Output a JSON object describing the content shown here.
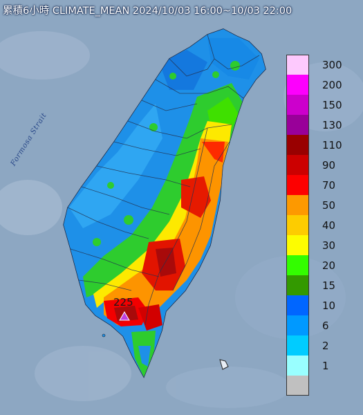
{
  "title": "累積6小時 CLIMATE_MEAN 2024/10/03 16:00~10/03 22:00",
  "strait_label": "Formosa Strait",
  "max_marker": {
    "value": "225",
    "color": "#c040e0"
  },
  "legend": [
    {
      "label": "300",
      "color": "#fdc9fd"
    },
    {
      "label": "200",
      "color": "#fd00fd"
    },
    {
      "label": "150",
      "color": "#cc00cc"
    },
    {
      "label": "130",
      "color": "#990099"
    },
    {
      "label": "110",
      "color": "#990000"
    },
    {
      "label": "90",
      "color": "#cc0000"
    },
    {
      "label": "70",
      "color": "#fd0000"
    },
    {
      "label": "50",
      "color": "#fd9900"
    },
    {
      "label": "40",
      "color": "#fdcc00"
    },
    {
      "label": "30",
      "color": "#fdfd00"
    },
    {
      "label": "20",
      "color": "#33fd00"
    },
    {
      "label": "15",
      "color": "#339900"
    },
    {
      "label": "10",
      "color": "#0066ff"
    },
    {
      "label": "6",
      "color": "#0099ff"
    },
    {
      "label": "2",
      "color": "#00ccff"
    },
    {
      "label": "1",
      "color": "#99ffff"
    },
    {
      "label": "",
      "color": "#c0c0c0"
    }
  ]
}
